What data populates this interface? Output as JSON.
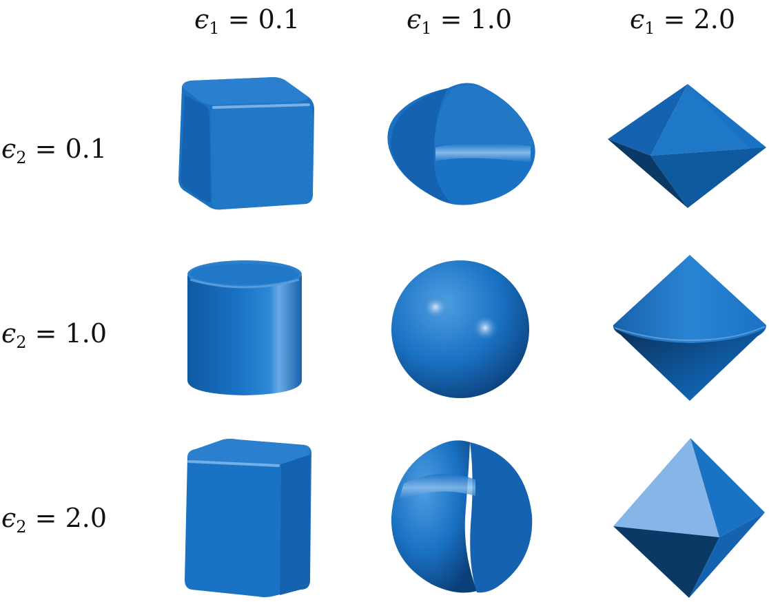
{
  "columns": [
    {
      "symbol": "ϵ",
      "sub": "1",
      "eq": " = ",
      "value": "0.1"
    },
    {
      "symbol": "ϵ",
      "sub": "1",
      "eq": " = ",
      "value": "1.0"
    },
    {
      "symbol": "ϵ",
      "sub": "1",
      "eq": " = ",
      "value": "2.0"
    }
  ],
  "rows": [
    {
      "symbol": "ϵ",
      "sub": "2",
      "eq": " = ",
      "value": "0.1"
    },
    {
      "symbol": "ϵ",
      "sub": "2",
      "eq": " = ",
      "value": "1.0"
    },
    {
      "symbol": "ϵ",
      "sub": "2",
      "eq": " = ",
      "value": "2.0"
    }
  ],
  "colors": {
    "base": "#1a72c4",
    "dark": "#0b4c8c",
    "light": "#4f9ee0",
    "pale": "#86b6e8",
    "shadow": "#0a3966",
    "background": "#ffffff"
  },
  "shapes": [
    "rounded-cube",
    "lens-barrel",
    "octahedron",
    "cylinder",
    "sphere",
    "double-cone",
    "rounded-box",
    "split-sphere",
    "octahedron-faceted"
  ]
}
